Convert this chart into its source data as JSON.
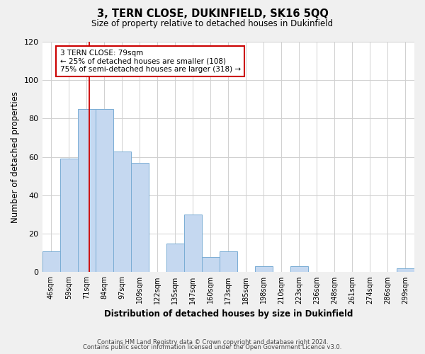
{
  "title": "3, TERN CLOSE, DUKINFIELD, SK16 5QQ",
  "subtitle": "Size of property relative to detached houses in Dukinfield",
  "xlabel": "Distribution of detached houses by size in Dukinfield",
  "ylabel": "Number of detached properties",
  "bar_labels": [
    "46sqm",
    "59sqm",
    "71sqm",
    "84sqm",
    "97sqm",
    "109sqm",
    "122sqm",
    "135sqm",
    "147sqm",
    "160sqm",
    "173sqm",
    "185sqm",
    "198sqm",
    "210sqm",
    "223sqm",
    "236sqm",
    "248sqm",
    "261sqm",
    "274sqm",
    "286sqm",
    "299sqm"
  ],
  "bar_values": [
    11,
    59,
    85,
    85,
    63,
    57,
    0,
    15,
    30,
    8,
    11,
    0,
    3,
    0,
    3,
    0,
    0,
    0,
    0,
    0,
    2
  ],
  "bar_color": "#c5d8f0",
  "bar_edge_color": "#7aadd4",
  "annotation_box_text": "3 TERN CLOSE: 79sqm\n← 25% of detached houses are smaller (108)\n75% of semi-detached houses are larger (318) →",
  "annotation_box_color": "#ffffff",
  "annotation_box_edge_color": "#cc0000",
  "vline_color": "#cc0000",
  "ylim": [
    0,
    120
  ],
  "yticks": [
    0,
    20,
    40,
    60,
    80,
    100,
    120
  ],
  "footer_line1": "Contains HM Land Registry data © Crown copyright and database right 2024.",
  "footer_line2": "Contains public sector information licensed under the Open Government Licence v3.0.",
  "background_color": "#f0f0f0",
  "plot_background_color": "#ffffff",
  "grid_color": "#d0d0d0",
  "vline_x_index": 2.15
}
